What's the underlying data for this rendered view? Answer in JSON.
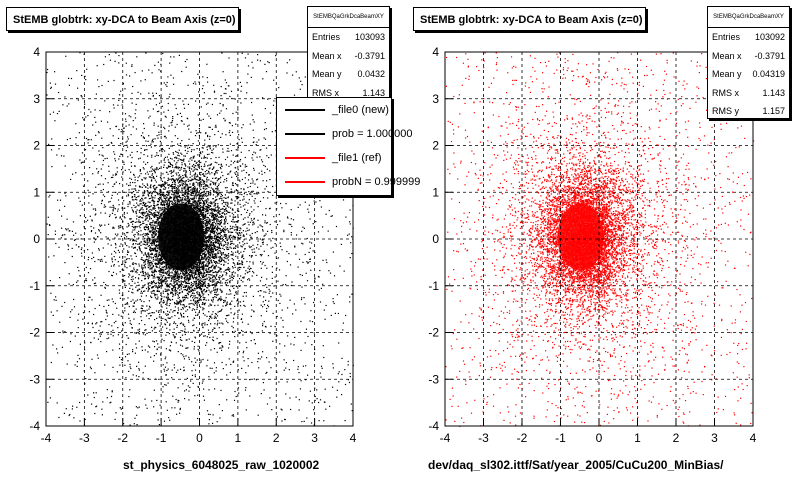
{
  "chart_data": [
    {
      "type": "scatter",
      "title": "StEMB globtrk: xy-DCA to Beam Axis (z=0)",
      "xlim": [
        -4,
        4
      ],
      "ylim": [
        -4,
        4
      ],
      "x_ticks": [
        "-4",
        "-3",
        "-2",
        "-1",
        "0",
        "1",
        "2",
        "3",
        "4"
      ],
      "y_ticks": [
        "-4",
        "-3",
        "-2",
        "-1",
        "0",
        "1",
        "2",
        "3",
        "4"
      ],
      "grid": true,
      "marker_color": "#000000",
      "xlabel": "st_physics_6048025_raw_1020002",
      "stats": {
        "name": "StEMBQaGrkDcaBeamXY",
        "entries": "103093",
        "mean_x": "-0.3791",
        "mean_y": "0.0432",
        "rms_x": "1.143"
      },
      "legend": [
        {
          "label": "_file0 (new)",
          "color": "#000000"
        },
        {
          "label": "prob = 1.000000",
          "color": "#000000"
        },
        {
          "label": "_file1 (ref)",
          "color": "#ff0000"
        },
        {
          "label": "probN = 0.999999",
          "color": "#ff0000"
        }
      ]
    },
    {
      "type": "scatter",
      "title": "StEMB globtrk: xy-DCA to Beam Axis (z=0)",
      "xlim": [
        -4,
        4
      ],
      "ylim": [
        -4,
        4
      ],
      "x_ticks": [
        "-4",
        "-3",
        "-2",
        "-1",
        "0",
        "1",
        "2",
        "3",
        "4"
      ],
      "y_ticks": [
        "-4",
        "-3",
        "-2",
        "-1",
        "0",
        "1",
        "2",
        "3",
        "4"
      ],
      "grid": true,
      "marker_color": "#ff0000",
      "xlabel": "dev/daq_sl302.ittf/Sat/year_2005/CuCu200_MinBias/",
      "stats": {
        "name": "StEMBQaGrkDcaBeamXY",
        "entries": "103092",
        "mean_x": "-0.3791",
        "mean_y": "0.04319",
        "rms_x": "1.143",
        "rms_y": "1.157"
      }
    }
  ],
  "stat_labels": {
    "entries": "Entries",
    "mean_x": "Mean x",
    "mean_y": "Mean y",
    "rms_x": "RMS x",
    "rms_y": "RMS y"
  }
}
